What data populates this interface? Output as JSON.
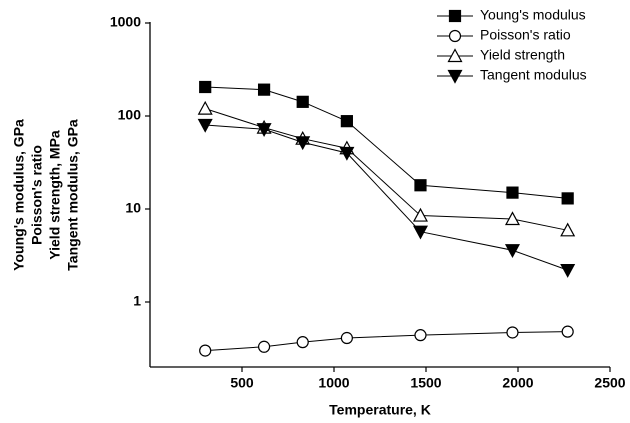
{
  "chart_data": {
    "type": "line",
    "xlabel": "Temperature, K",
    "ylabel": [
      "Young's modulus, GPa",
      "Poisson's ratio",
      "Yield strength, MPa",
      "Tangent modulus, GPa"
    ],
    "x": [
      300,
      620,
      830,
      1070,
      1470,
      1970,
      2270
    ],
    "series": [
      {
        "name": "Young's modulus",
        "color": "#000000",
        "marker": "square-filled",
        "values": [
          205,
          192,
          142,
          88,
          18,
          15,
          13
        ]
      },
      {
        "name": "Poisson's ratio",
        "color": "#000000",
        "marker": "circle-open",
        "values": [
          0.3,
          0.33,
          0.37,
          0.41,
          0.44,
          0.47,
          0.48
        ]
      },
      {
        "name": "Yield strength",
        "color": "#000000",
        "marker": "triangle-up-open",
        "values": [
          120,
          75,
          57,
          45,
          8.5,
          7.8,
          5.9
        ]
      },
      {
        "name": "Tangent modulus",
        "color": "#000000",
        "marker": "triangle-down-filled",
        "values": [
          80,
          72,
          52,
          40,
          5.7,
          3.6,
          2.2
        ]
      }
    ],
    "xlim": [
      0,
      2500
    ],
    "xticks": [
      500,
      1000,
      1500,
      2000,
      2500
    ],
    "ylim": [
      0.2,
      1000
    ],
    "yticks": [
      1,
      10,
      100,
      1000
    ],
    "log_y": true,
    "grid": false,
    "legend": "upper right"
  }
}
